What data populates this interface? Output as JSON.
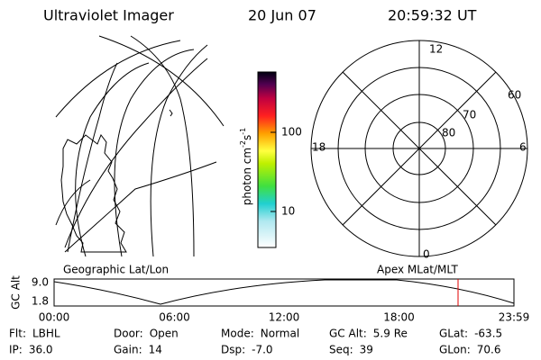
{
  "header": {
    "title": "Ultraviolet Imager",
    "date": "20 Jun 07",
    "time": "20:59:32 UT"
  },
  "colorbar": {
    "label": [
      "photon cm",
      "-2",
      "s",
      "-1"
    ],
    "ticks": [
      "100",
      "10"
    ]
  },
  "polar": {
    "mlt_labels": [
      "12",
      "6",
      "0",
      "18"
    ],
    "lat_labels": [
      "60",
      "70",
      "80"
    ]
  },
  "panel_labels": {
    "left": "Geographic Lat/Lon",
    "right": "Apex MLat/MLT"
  },
  "altitude": {
    "ylabel": "GC Alt",
    "yticks": [
      "9.0",
      "1.8"
    ],
    "xticks": [
      "00:00",
      "06:00",
      "12:00",
      "18:00",
      "23:59"
    ]
  },
  "footer": [
    [
      {
        "label": "Flt:",
        "value": "LBHL"
      },
      {
        "label": "Door:",
        "value": "Open"
      },
      {
        "label": "Mode:",
        "value": "Normal"
      },
      {
        "label": "GC Alt:",
        "value": "5.9 Re"
      },
      {
        "label": "GLat:",
        "value": "-63.5"
      }
    ],
    [
      {
        "label": "IP:",
        "value": "36.0"
      },
      {
        "label": "Gain:",
        "value": "14"
      },
      {
        "label": "Dsp:",
        "value": "-7.0"
      },
      {
        "label": "Seq:",
        "value": "39"
      },
      {
        "label": "GLon:",
        "value": "70.6"
      }
    ]
  ]
}
